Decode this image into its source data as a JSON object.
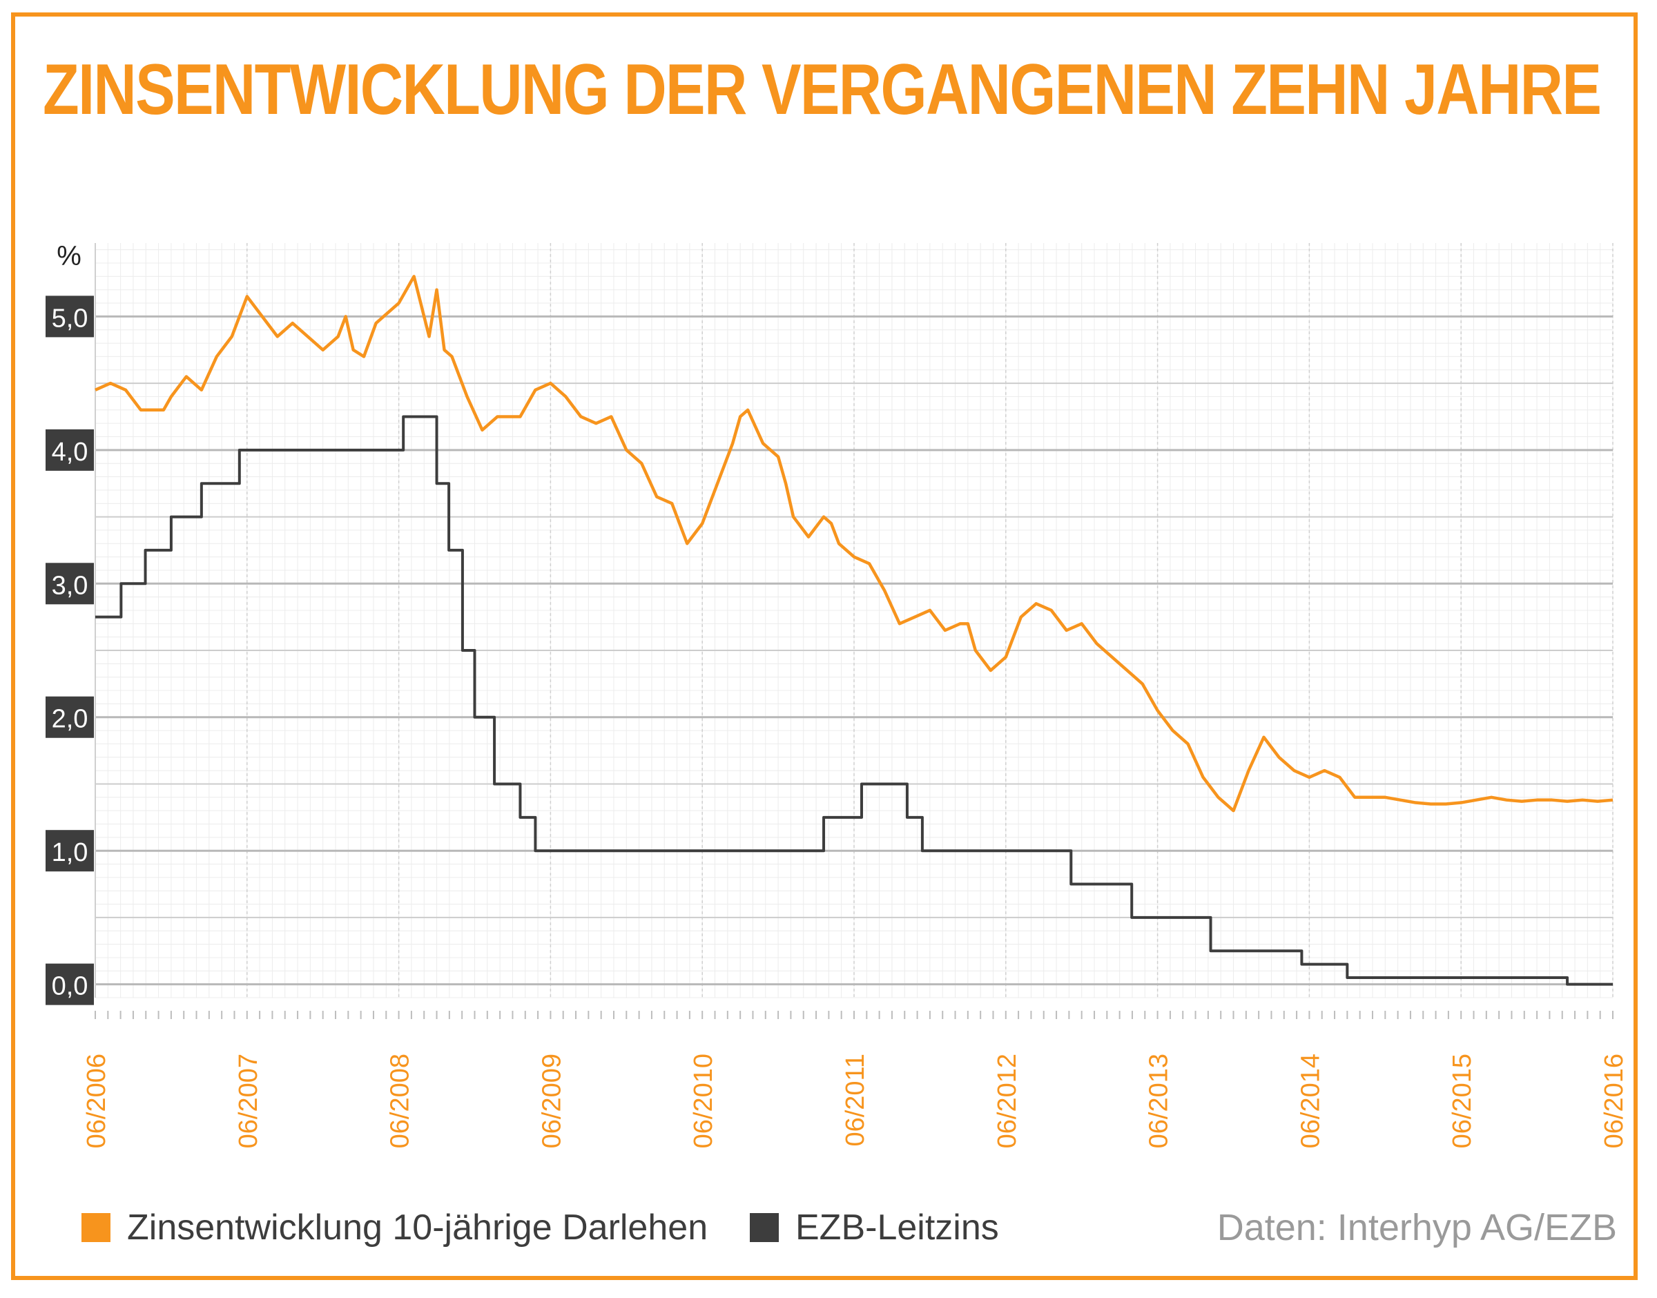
{
  "title": "ZINSENTWICKLUNG DER VERGANGENEN ZEHN JAHRE",
  "source": "Daten: Interhyp AG/EZB",
  "colors": {
    "accent": "#f7941d",
    "dark": "#3d3d3d",
    "grid": "#bdbdbd",
    "source": "#9a9a9a"
  },
  "chart_data": {
    "type": "line",
    "ylabel": "%",
    "ylim": [
      -0.25,
      5.55
    ],
    "xlim": [
      2006.5,
      2016.5
    ],
    "yticks": [
      0,
      1,
      2,
      3,
      4,
      5
    ],
    "ytick_labels": [
      "0,0",
      "1,0",
      "2,0",
      "3,0",
      "4,0",
      "5,0"
    ],
    "xticks": [
      2006.5,
      2007.5,
      2008.5,
      2009.5,
      2010.5,
      2011.5,
      2012.5,
      2013.5,
      2014.5,
      2015.5,
      2016.5
    ],
    "xtick_labels": [
      "06/2006",
      "06/2007",
      "06/2008",
      "06/2009",
      "06/2010",
      "06/2011",
      "06/2012",
      "06/2013",
      "06/2014",
      "06/2015",
      "06/2016"
    ],
    "grid": true,
    "legend_placement": "bottom-left",
    "series": [
      {
        "name": "Zinsentwicklung 10-jährige Darlehen",
        "color": "#f7941d",
        "style": "line",
        "x": [
          2006.5,
          2006.6,
          2006.7,
          2006.8,
          2006.95,
          2007.0,
          2007.1,
          2007.2,
          2007.3,
          2007.4,
          2007.5,
          2007.6,
          2007.7,
          2007.8,
          2007.9,
          2008.0,
          2008.1,
          2008.15,
          2008.2,
          2008.27,
          2008.35,
          2008.45,
          2008.5,
          2008.6,
          2008.7,
          2008.75,
          2008.8,
          2008.85,
          2008.95,
          2009.05,
          2009.15,
          2009.3,
          2009.4,
          2009.5,
          2009.6,
          2009.7,
          2009.8,
          2009.9,
          2010.0,
          2010.1,
          2010.2,
          2010.3,
          2010.4,
          2010.5,
          2010.6,
          2010.7,
          2010.75,
          2010.8,
          2010.9,
          2011.0,
          2011.05,
          2011.1,
          2011.2,
          2011.3,
          2011.35,
          2011.4,
          2011.5,
          2011.6,
          2011.7,
          2011.8,
          2011.9,
          2012.0,
          2012.1,
          2012.2,
          2012.25,
          2012.3,
          2012.4,
          2012.5,
          2012.6,
          2012.7,
          2012.8,
          2012.9,
          2013.0,
          2013.1,
          2013.2,
          2013.3,
          2013.4,
          2013.5,
          2013.6,
          2013.7,
          2013.8,
          2013.9,
          2014.0,
          2014.1,
          2014.2,
          2014.3,
          2014.4,
          2014.5,
          2014.6,
          2014.7,
          2014.8,
          2014.9,
          2015.0,
          2015.1,
          2015.2,
          2015.3,
          2015.4,
          2015.5,
          2015.6,
          2015.7,
          2015.8,
          2015.9,
          2016.0,
          2016.1,
          2016.2,
          2016.3,
          2016.4,
          2016.5
        ],
        "values": [
          4.45,
          4.5,
          4.45,
          4.3,
          4.3,
          4.4,
          4.55,
          4.45,
          4.7,
          4.85,
          5.15,
          5.0,
          4.85,
          4.95,
          4.85,
          4.75,
          4.85,
          5.0,
          4.75,
          4.7,
          4.95,
          5.05,
          5.1,
          5.3,
          4.85,
          5.2,
          4.75,
          4.7,
          4.4,
          4.15,
          4.25,
          4.25,
          4.45,
          4.5,
          4.4,
          4.25,
          4.2,
          4.25,
          4.0,
          3.9,
          3.65,
          3.6,
          3.3,
          3.45,
          3.75,
          4.05,
          4.25,
          4.3,
          4.05,
          3.95,
          3.75,
          3.5,
          3.35,
          3.5,
          3.45,
          3.3,
          3.2,
          3.15,
          2.95,
          2.7,
          2.75,
          2.8,
          2.65,
          2.7,
          2.7,
          2.5,
          2.35,
          2.45,
          2.75,
          2.85,
          2.8,
          2.65,
          2.7,
          2.55,
          2.45,
          2.35,
          2.25,
          2.05,
          1.9,
          1.8,
          1.55,
          1.4,
          1.3,
          1.6,
          1.85,
          1.7,
          1.6,
          1.55,
          1.6,
          1.55,
          1.4,
          1.4,
          1.4,
          1.38,
          1.36,
          1.35,
          1.35,
          1.36,
          1.38,
          1.4,
          1.38,
          1.37,
          1.38,
          1.38,
          1.37,
          1.38,
          1.37,
          1.38
        ]
      },
      {
        "name": "EZB-Leitzins",
        "color": "#3d3d3d",
        "style": "step",
        "x": [
          2006.5,
          2006.67,
          2006.83,
          2007.0,
          2007.2,
          2007.45,
          2007.5,
          2008.53,
          2008.75,
          2008.83,
          2008.92,
          2009.0,
          2009.13,
          2009.3,
          2009.4,
          2009.5,
          2011.3,
          2011.55,
          2011.85,
          2011.95,
          2012.5,
          2012.93,
          2013.33,
          2013.85,
          2014.45,
          2014.75,
          2015.5,
          2016.2,
          2016.5
        ],
        "values": [
          2.75,
          3.0,
          3.25,
          3.5,
          3.75,
          4.0,
          4.0,
          4.25,
          3.75,
          3.25,
          2.5,
          2.0,
          1.5,
          1.25,
          1.0,
          1.0,
          1.25,
          1.5,
          1.25,
          1.0,
          1.0,
          0.75,
          0.5,
          0.25,
          0.15,
          0.05,
          0.05,
          0.0,
          0.0
        ]
      }
    ]
  }
}
